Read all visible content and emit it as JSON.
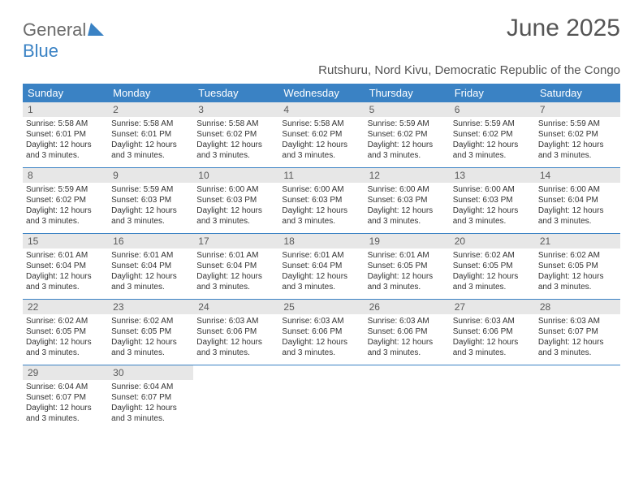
{
  "brand": {
    "part1": "General",
    "part2": "Blue"
  },
  "title": "June 2025",
  "subtitle": "Rutshuru, Nord Kivu, Democratic Republic of the Congo",
  "colors": {
    "accent": "#3a82c4",
    "header_bg": "#3a82c4",
    "daynum_bg": "#e7e7e7",
    "text_muted": "#555555",
    "text_body": "#333333",
    "background": "#ffffff"
  },
  "dow": [
    "Sunday",
    "Monday",
    "Tuesday",
    "Wednesday",
    "Thursday",
    "Friday",
    "Saturday"
  ],
  "weeks": [
    [
      {
        "n": "1",
        "sr": "Sunrise: 5:58 AM",
        "ss": "Sunset: 6:01 PM",
        "dl1": "Daylight: 12 hours",
        "dl2": "and 3 minutes."
      },
      {
        "n": "2",
        "sr": "Sunrise: 5:58 AM",
        "ss": "Sunset: 6:01 PM",
        "dl1": "Daylight: 12 hours",
        "dl2": "and 3 minutes."
      },
      {
        "n": "3",
        "sr": "Sunrise: 5:58 AM",
        "ss": "Sunset: 6:02 PM",
        "dl1": "Daylight: 12 hours",
        "dl2": "and 3 minutes."
      },
      {
        "n": "4",
        "sr": "Sunrise: 5:58 AM",
        "ss": "Sunset: 6:02 PM",
        "dl1": "Daylight: 12 hours",
        "dl2": "and 3 minutes."
      },
      {
        "n": "5",
        "sr": "Sunrise: 5:59 AM",
        "ss": "Sunset: 6:02 PM",
        "dl1": "Daylight: 12 hours",
        "dl2": "and 3 minutes."
      },
      {
        "n": "6",
        "sr": "Sunrise: 5:59 AM",
        "ss": "Sunset: 6:02 PM",
        "dl1": "Daylight: 12 hours",
        "dl2": "and 3 minutes."
      },
      {
        "n": "7",
        "sr": "Sunrise: 5:59 AM",
        "ss": "Sunset: 6:02 PM",
        "dl1": "Daylight: 12 hours",
        "dl2": "and 3 minutes."
      }
    ],
    [
      {
        "n": "8",
        "sr": "Sunrise: 5:59 AM",
        "ss": "Sunset: 6:02 PM",
        "dl1": "Daylight: 12 hours",
        "dl2": "and 3 minutes."
      },
      {
        "n": "9",
        "sr": "Sunrise: 5:59 AM",
        "ss": "Sunset: 6:03 PM",
        "dl1": "Daylight: 12 hours",
        "dl2": "and 3 minutes."
      },
      {
        "n": "10",
        "sr": "Sunrise: 6:00 AM",
        "ss": "Sunset: 6:03 PM",
        "dl1": "Daylight: 12 hours",
        "dl2": "and 3 minutes."
      },
      {
        "n": "11",
        "sr": "Sunrise: 6:00 AM",
        "ss": "Sunset: 6:03 PM",
        "dl1": "Daylight: 12 hours",
        "dl2": "and 3 minutes."
      },
      {
        "n": "12",
        "sr": "Sunrise: 6:00 AM",
        "ss": "Sunset: 6:03 PM",
        "dl1": "Daylight: 12 hours",
        "dl2": "and 3 minutes."
      },
      {
        "n": "13",
        "sr": "Sunrise: 6:00 AM",
        "ss": "Sunset: 6:03 PM",
        "dl1": "Daylight: 12 hours",
        "dl2": "and 3 minutes."
      },
      {
        "n": "14",
        "sr": "Sunrise: 6:00 AM",
        "ss": "Sunset: 6:04 PM",
        "dl1": "Daylight: 12 hours",
        "dl2": "and 3 minutes."
      }
    ],
    [
      {
        "n": "15",
        "sr": "Sunrise: 6:01 AM",
        "ss": "Sunset: 6:04 PM",
        "dl1": "Daylight: 12 hours",
        "dl2": "and 3 minutes."
      },
      {
        "n": "16",
        "sr": "Sunrise: 6:01 AM",
        "ss": "Sunset: 6:04 PM",
        "dl1": "Daylight: 12 hours",
        "dl2": "and 3 minutes."
      },
      {
        "n": "17",
        "sr": "Sunrise: 6:01 AM",
        "ss": "Sunset: 6:04 PM",
        "dl1": "Daylight: 12 hours",
        "dl2": "and 3 minutes."
      },
      {
        "n": "18",
        "sr": "Sunrise: 6:01 AM",
        "ss": "Sunset: 6:04 PM",
        "dl1": "Daylight: 12 hours",
        "dl2": "and 3 minutes."
      },
      {
        "n": "19",
        "sr": "Sunrise: 6:01 AM",
        "ss": "Sunset: 6:05 PM",
        "dl1": "Daylight: 12 hours",
        "dl2": "and 3 minutes."
      },
      {
        "n": "20",
        "sr": "Sunrise: 6:02 AM",
        "ss": "Sunset: 6:05 PM",
        "dl1": "Daylight: 12 hours",
        "dl2": "and 3 minutes."
      },
      {
        "n": "21",
        "sr": "Sunrise: 6:02 AM",
        "ss": "Sunset: 6:05 PM",
        "dl1": "Daylight: 12 hours",
        "dl2": "and 3 minutes."
      }
    ],
    [
      {
        "n": "22",
        "sr": "Sunrise: 6:02 AM",
        "ss": "Sunset: 6:05 PM",
        "dl1": "Daylight: 12 hours",
        "dl2": "and 3 minutes."
      },
      {
        "n": "23",
        "sr": "Sunrise: 6:02 AM",
        "ss": "Sunset: 6:05 PM",
        "dl1": "Daylight: 12 hours",
        "dl2": "and 3 minutes."
      },
      {
        "n": "24",
        "sr": "Sunrise: 6:03 AM",
        "ss": "Sunset: 6:06 PM",
        "dl1": "Daylight: 12 hours",
        "dl2": "and 3 minutes."
      },
      {
        "n": "25",
        "sr": "Sunrise: 6:03 AM",
        "ss": "Sunset: 6:06 PM",
        "dl1": "Daylight: 12 hours",
        "dl2": "and 3 minutes."
      },
      {
        "n": "26",
        "sr": "Sunrise: 6:03 AM",
        "ss": "Sunset: 6:06 PM",
        "dl1": "Daylight: 12 hours",
        "dl2": "and 3 minutes."
      },
      {
        "n": "27",
        "sr": "Sunrise: 6:03 AM",
        "ss": "Sunset: 6:06 PM",
        "dl1": "Daylight: 12 hours",
        "dl2": "and 3 minutes."
      },
      {
        "n": "28",
        "sr": "Sunrise: 6:03 AM",
        "ss": "Sunset: 6:07 PM",
        "dl1": "Daylight: 12 hours",
        "dl2": "and 3 minutes."
      }
    ],
    [
      {
        "n": "29",
        "sr": "Sunrise: 6:04 AM",
        "ss": "Sunset: 6:07 PM",
        "dl1": "Daylight: 12 hours",
        "dl2": "and 3 minutes."
      },
      {
        "n": "30",
        "sr": "Sunrise: 6:04 AM",
        "ss": "Sunset: 6:07 PM",
        "dl1": "Daylight: 12 hours",
        "dl2": "and 3 minutes."
      },
      {
        "empty": true
      },
      {
        "empty": true
      },
      {
        "empty": true
      },
      {
        "empty": true
      },
      {
        "empty": true
      }
    ]
  ]
}
